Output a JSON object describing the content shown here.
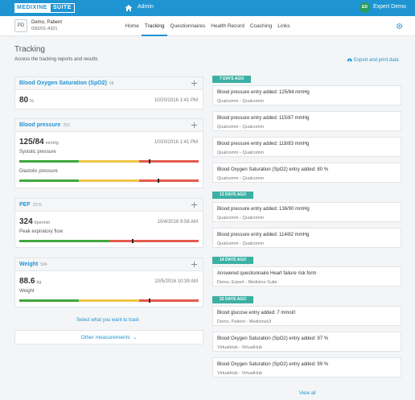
{
  "brand": {
    "part1": "MEDIXINE",
    "part2": "SUITE"
  },
  "topbar": {
    "admin_label": "Admin",
    "user_initials": "ED",
    "user_name": "Expert Demo"
  },
  "patient": {
    "initials": "PD",
    "name": "Demo, Patient",
    "id": "030201-4321"
  },
  "tabs": [
    {
      "label": "Home"
    },
    {
      "label": "Tracking",
      "active": true
    },
    {
      "label": "Questionnaires"
    },
    {
      "label": "Health Record"
    },
    {
      "label": "Coaching"
    },
    {
      "label": "Links"
    }
  ],
  "page": {
    "title": "Tracking",
    "subtitle": "Access the tracking reports and results",
    "export_label": "Export and print data",
    "select_label": "Select what you want to track",
    "other_label": "Other measurements"
  },
  "cards": {
    "spo2": {
      "title": "Blood Oxygen Saturation (SpO2)",
      "count": "68",
      "value": "80",
      "unit": "%",
      "date": "10/20/2016 1:41 PM"
    },
    "bp": {
      "title": "Blood pressure",
      "count": "253",
      "value": "125/84",
      "unit": "mmHg",
      "date": "10/20/2016 1:41 PM",
      "systolic_label": "Systolic pressure",
      "diastolic_label": "Diastolic pressure",
      "systolic_level": 0.72,
      "diastolic_level": 0.77
    },
    "pef": {
      "title": "PEF",
      "count": "2076",
      "value": "324",
      "unit": "l/perm​in",
      "date": "10/4/2016 9:58 AM",
      "bar_label": "Peak expiratory flow",
      "level": 0.63
    },
    "weight": {
      "title": "Weight",
      "count": "594",
      "value": "88.6",
      "unit": "kg",
      "date": "10/5/2016 10:39 AM",
      "bar_label": "Weight",
      "level": 0.72
    }
  },
  "timeline": {
    "badges": [
      "7 DAYS AGO",
      "13 DAYS AGO",
      "14 DAYS AGO",
      "22 DAYS AGO"
    ],
    "entries": [
      {
        "title": "Blood pressure entry added: 125/84 mmHg",
        "source": "Qualcomm - Qualcomm"
      },
      {
        "title": "Blood pressure entry added: 115/87 mmHg",
        "source": "Qualcomm - Qualcomm"
      },
      {
        "title": "Blood pressure entry added: 118/83 mmHg",
        "source": "Qualcomm - Qualcomm"
      },
      {
        "title": "Blood Oxygen Saturation (SpO2) entry added: 80 %",
        "source": "Qualcomm - Qualcomm"
      },
      {
        "title": "Blood pressure entry added: 136/90 mmHg",
        "source": "Qualcomm - Qualcomm"
      },
      {
        "title": "Blood pressure entry added: 114/82 mmHg",
        "source": "Qualcomm - Qualcomm"
      },
      {
        "title": "Answered questionnaire Heart failure risk form",
        "source": "Demo, Expert - Medixine Suite"
      },
      {
        "title": "Blood glucose entry added: 7 mmol/l",
        "source": "Demo, Patient - MedixineUI"
      },
      {
        "title": "Blood Oxygen Saturation (SpO2) entry added: 97 %",
        "source": "VirtualHub - VirtualHub"
      },
      {
        "title": "Blood Oxygen Saturation (SpO2) entry added: 99 %",
        "source": "VirtualHub - VirtualHub"
      }
    ],
    "view_all": "View all"
  },
  "colors": {
    "brand": "#1f94d2",
    "badge": "#3cb0a4",
    "good": "#3fa83f",
    "warn": "#f1c649",
    "bad": "#e45b4f"
  }
}
